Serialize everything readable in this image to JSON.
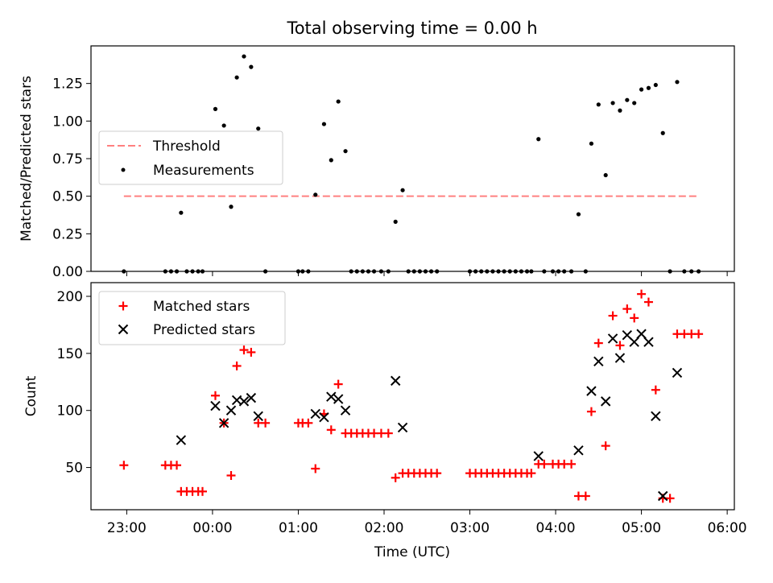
{
  "title": "Total observing time = 0.00 h",
  "chart_data": [
    {
      "type": "scatter",
      "ylabel": "Matched/Predicted stars",
      "ylim": [
        0,
        1.5
      ],
      "xlim": [
        "22:35",
        "06:05"
      ],
      "yticks": [
        "0.00",
        "0.25",
        "0.50",
        "0.75",
        "1.00",
        "1.25"
      ],
      "threshold": {
        "name": "Threshold",
        "value": 0.5,
        "x": [
          "22:58",
          "05:40"
        ],
        "color": "#ff8080"
      },
      "measurements": {
        "name": "Measurements",
        "color": "#000000",
        "points": [
          [
            "22:58",
            0.0
          ],
          [
            "23:27",
            0.0
          ],
          [
            "23:31",
            0.0
          ],
          [
            "23:35",
            0.0
          ],
          [
            "23:38",
            0.39
          ],
          [
            "23:42",
            0.0
          ],
          [
            "23:46",
            0.0
          ],
          [
            "23:50",
            0.0
          ],
          [
            "23:53",
            0.0
          ],
          [
            "00:02",
            1.08
          ],
          [
            "00:08",
            0.97
          ],
          [
            "00:13",
            0.43
          ],
          [
            "00:17",
            1.29
          ],
          [
            "00:22",
            1.43
          ],
          [
            "00:27",
            1.36
          ],
          [
            "00:32",
            0.95
          ],
          [
            "00:37",
            0.0
          ],
          [
            "01:00",
            0.0
          ],
          [
            "01:03",
            0.0
          ],
          [
            "01:07",
            0.0
          ],
          [
            "01:12",
            0.51
          ],
          [
            "01:18",
            0.98
          ],
          [
            "01:23",
            0.74
          ],
          [
            "01:28",
            1.13
          ],
          [
            "01:33",
            0.8
          ],
          [
            "01:37",
            0.0
          ],
          [
            "01:41",
            0.0
          ],
          [
            "01:45",
            0.0
          ],
          [
            "01:49",
            0.0
          ],
          [
            "01:53",
            0.0
          ],
          [
            "01:58",
            0.0
          ],
          [
            "02:03",
            0.0
          ],
          [
            "02:08",
            0.33
          ],
          [
            "02:13",
            0.54
          ],
          [
            "02:17",
            0.0
          ],
          [
            "02:21",
            0.0
          ],
          [
            "02:25",
            0.0
          ],
          [
            "02:29",
            0.0
          ],
          [
            "02:33",
            0.0
          ],
          [
            "02:37",
            0.0
          ],
          [
            "03:00",
            0.0
          ],
          [
            "03:04",
            0.0
          ],
          [
            "03:08",
            0.0
          ],
          [
            "03:12",
            0.0
          ],
          [
            "03:16",
            0.0
          ],
          [
            "03:20",
            0.0
          ],
          [
            "03:24",
            0.0
          ],
          [
            "03:28",
            0.0
          ],
          [
            "03:32",
            0.0
          ],
          [
            "03:36",
            0.0
          ],
          [
            "03:40",
            0.0
          ],
          [
            "03:43",
            0.0
          ],
          [
            "03:48",
            0.88
          ],
          [
            "03:52",
            0.0
          ],
          [
            "03:58",
            0.0
          ],
          [
            "04:02",
            0.0
          ],
          [
            "04:06",
            0.0
          ],
          [
            "04:11",
            0.0
          ],
          [
            "04:16",
            0.38
          ],
          [
            "04:21",
            0.0
          ],
          [
            "04:25",
            0.85
          ],
          [
            "04:30",
            1.11
          ],
          [
            "04:35",
            0.64
          ],
          [
            "04:40",
            1.12
          ],
          [
            "04:45",
            1.07
          ],
          [
            "04:50",
            1.14
          ],
          [
            "04:55",
            1.12
          ],
          [
            "05:00",
            1.21
          ],
          [
            "05:05",
            1.22
          ],
          [
            "05:10",
            1.24
          ],
          [
            "05:15",
            0.92
          ],
          [
            "05:20",
            0.0
          ],
          [
            "05:25",
            1.26
          ],
          [
            "05:30",
            0.0
          ],
          [
            "05:35",
            0.0
          ],
          [
            "05:40",
            0.0
          ]
        ]
      },
      "legend_position": "center-left"
    },
    {
      "type": "scatter",
      "xlabel": "Time (UTC)",
      "ylabel": "Count",
      "ylim": [
        13,
        212
      ],
      "xlim": [
        "22:35",
        "06:05"
      ],
      "xticks": [
        "23:00",
        "00:00",
        "01:00",
        "02:00",
        "03:00",
        "04:00",
        "05:00",
        "06:00"
      ],
      "yticks": [
        "50",
        "100",
        "150",
        "200"
      ],
      "legend_position": "top-left",
      "series": [
        {
          "name": "Matched stars",
          "marker": "plus",
          "color": "#ff0000",
          "points": [
            [
              "22:58",
              52
            ],
            [
              "23:27",
              52
            ],
            [
              "23:31",
              52
            ],
            [
              "23:35",
              52
            ],
            [
              "23:38",
              29
            ],
            [
              "23:42",
              29
            ],
            [
              "23:46",
              29
            ],
            [
              "23:50",
              29
            ],
            [
              "23:53",
              29
            ],
            [
              "00:02",
              113
            ],
            [
              "00:08",
              89
            ],
            [
              "00:13",
              43
            ],
            [
              "00:17",
              139
            ],
            [
              "00:22",
              153
            ],
            [
              "00:27",
              151
            ],
            [
              "00:32",
              89
            ],
            [
              "00:37",
              89
            ],
            [
              "01:00",
              89
            ],
            [
              "01:03",
              89
            ],
            [
              "01:07",
              89
            ],
            [
              "01:12",
              49
            ],
            [
              "01:18",
              97
            ],
            [
              "01:23",
              83
            ],
            [
              "01:28",
              123
            ],
            [
              "01:33",
              80
            ],
            [
              "01:37",
              80
            ],
            [
              "01:41",
              80
            ],
            [
              "01:45",
              80
            ],
            [
              "01:49",
              80
            ],
            [
              "01:53",
              80
            ],
            [
              "01:58",
              80
            ],
            [
              "02:03",
              80
            ],
            [
              "02:08",
              41
            ],
            [
              "02:13",
              45
            ],
            [
              "02:17",
              45
            ],
            [
              "02:21",
              45
            ],
            [
              "02:25",
              45
            ],
            [
              "02:29",
              45
            ],
            [
              "02:33",
              45
            ],
            [
              "02:37",
              45
            ],
            [
              "03:00",
              45
            ],
            [
              "03:04",
              45
            ],
            [
              "03:08",
              45
            ],
            [
              "03:12",
              45
            ],
            [
              "03:16",
              45
            ],
            [
              "03:20",
              45
            ],
            [
              "03:24",
              45
            ],
            [
              "03:28",
              45
            ],
            [
              "03:32",
              45
            ],
            [
              "03:36",
              45
            ],
            [
              "03:40",
              45
            ],
            [
              "03:43",
              45
            ],
            [
              "03:48",
              53
            ],
            [
              "03:52",
              53
            ],
            [
              "03:58",
              53
            ],
            [
              "04:02",
              53
            ],
            [
              "04:06",
              53
            ],
            [
              "04:11",
              53
            ],
            [
              "04:16",
              25
            ],
            [
              "04:21",
              25
            ],
            [
              "04:25",
              99
            ],
            [
              "04:30",
              159
            ],
            [
              "04:35",
              69
            ],
            [
              "04:40",
              183
            ],
            [
              "04:45",
              157
            ],
            [
              "04:50",
              189
            ],
            [
              "04:55",
              181
            ],
            [
              "05:00",
              202
            ],
            [
              "05:05",
              195
            ],
            [
              "05:10",
              118
            ],
            [
              "05:15",
              23
            ],
            [
              "05:20",
              23
            ],
            [
              "05:25",
              167
            ],
            [
              "05:30",
              167
            ],
            [
              "05:35",
              167
            ],
            [
              "05:40",
              167
            ]
          ]
        },
        {
          "name": "Predicted stars",
          "marker": "x",
          "color": "#000000",
          "points": [
            [
              "23:38",
              74
            ],
            [
              "00:02",
              104
            ],
            [
              "00:08",
              89
            ],
            [
              "00:13",
              100
            ],
            [
              "00:17",
              109
            ],
            [
              "00:22",
              108
            ],
            [
              "00:27",
              111
            ],
            [
              "00:32",
              95
            ],
            [
              "01:12",
              97
            ],
            [
              "01:18",
              94
            ],
            [
              "01:23",
              112
            ],
            [
              "01:28",
              110
            ],
            [
              "01:33",
              100
            ],
            [
              "02:08",
              126
            ],
            [
              "02:13",
              85
            ],
            [
              "03:48",
              60
            ],
            [
              "04:16",
              65
            ],
            [
              "04:25",
              117
            ],
            [
              "04:30",
              143
            ],
            [
              "04:35",
              108
            ],
            [
              "04:40",
              163
            ],
            [
              "04:45",
              146
            ],
            [
              "04:50",
              166
            ],
            [
              "04:55",
              160
            ],
            [
              "05:00",
              167
            ],
            [
              "05:05",
              160
            ],
            [
              "05:10",
              95
            ],
            [
              "05:15",
              25
            ],
            [
              "05:25",
              133
            ]
          ]
        }
      ]
    }
  ]
}
